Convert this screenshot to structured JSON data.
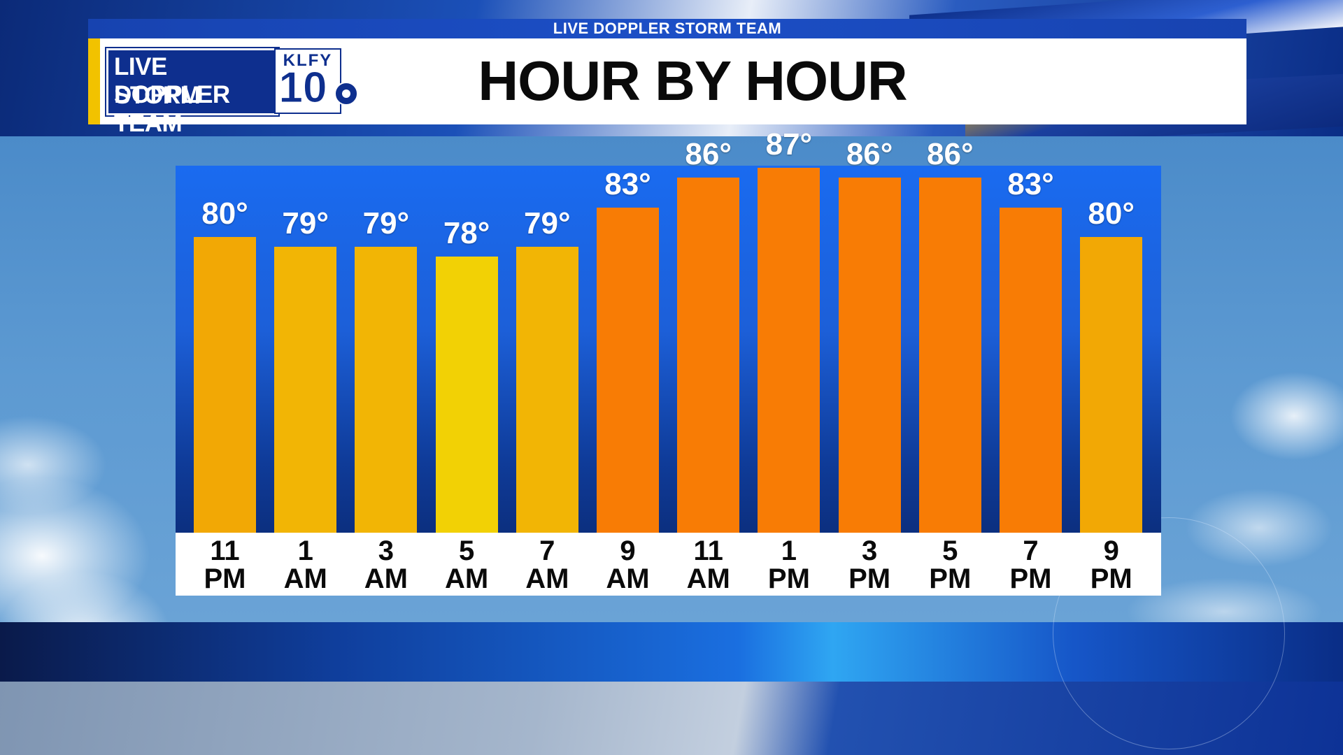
{
  "header": {
    "strip_text": "LIVE DOPPLER STORM TEAM",
    "logo_line1": "LIVE DOPPLER",
    "logo_line2": "STORM TEAM",
    "station_call": "KLFY",
    "station_number": "10"
  },
  "chart_data": {
    "type": "bar",
    "title": "HOUR BY HOUR",
    "categories": [
      "11 PM",
      "1 AM",
      "3 AM",
      "5 AM",
      "7 AM",
      "9 AM",
      "11 AM",
      "1 PM",
      "3 PM",
      "5 PM",
      "7 PM",
      "9 PM"
    ],
    "category_labels": [
      [
        "11",
        "PM"
      ],
      [
        "1",
        "AM"
      ],
      [
        "3",
        "AM"
      ],
      [
        "5",
        "AM"
      ],
      [
        "7",
        "AM"
      ],
      [
        "9",
        "AM"
      ],
      [
        "11",
        "AM"
      ],
      [
        "1",
        "PM"
      ],
      [
        "3",
        "PM"
      ],
      [
        "5",
        "PM"
      ],
      [
        "7",
        "PM"
      ],
      [
        "9",
        "PM"
      ]
    ],
    "values": [
      80,
      79,
      79,
      78,
      79,
      83,
      86,
      87,
      86,
      86,
      83,
      80
    ],
    "value_labels": [
      "80°",
      "79°",
      "79°",
      "78°",
      "79°",
      "83°",
      "86°",
      "87°",
      "86°",
      "86°",
      "83°",
      "80°"
    ],
    "unit": "°",
    "bar_colors": [
      "#f2a805",
      "#f2b505",
      "#f2b505",
      "#f2d105",
      "#f2b505",
      "#f87c05",
      "#f87c05",
      "#f87c05",
      "#f87c05",
      "#f87c05",
      "#f87c05",
      "#f2a805"
    ],
    "panel_color": "#1a6bf0",
    "xlabel": "",
    "ylabel": "",
    "grid": false
  }
}
